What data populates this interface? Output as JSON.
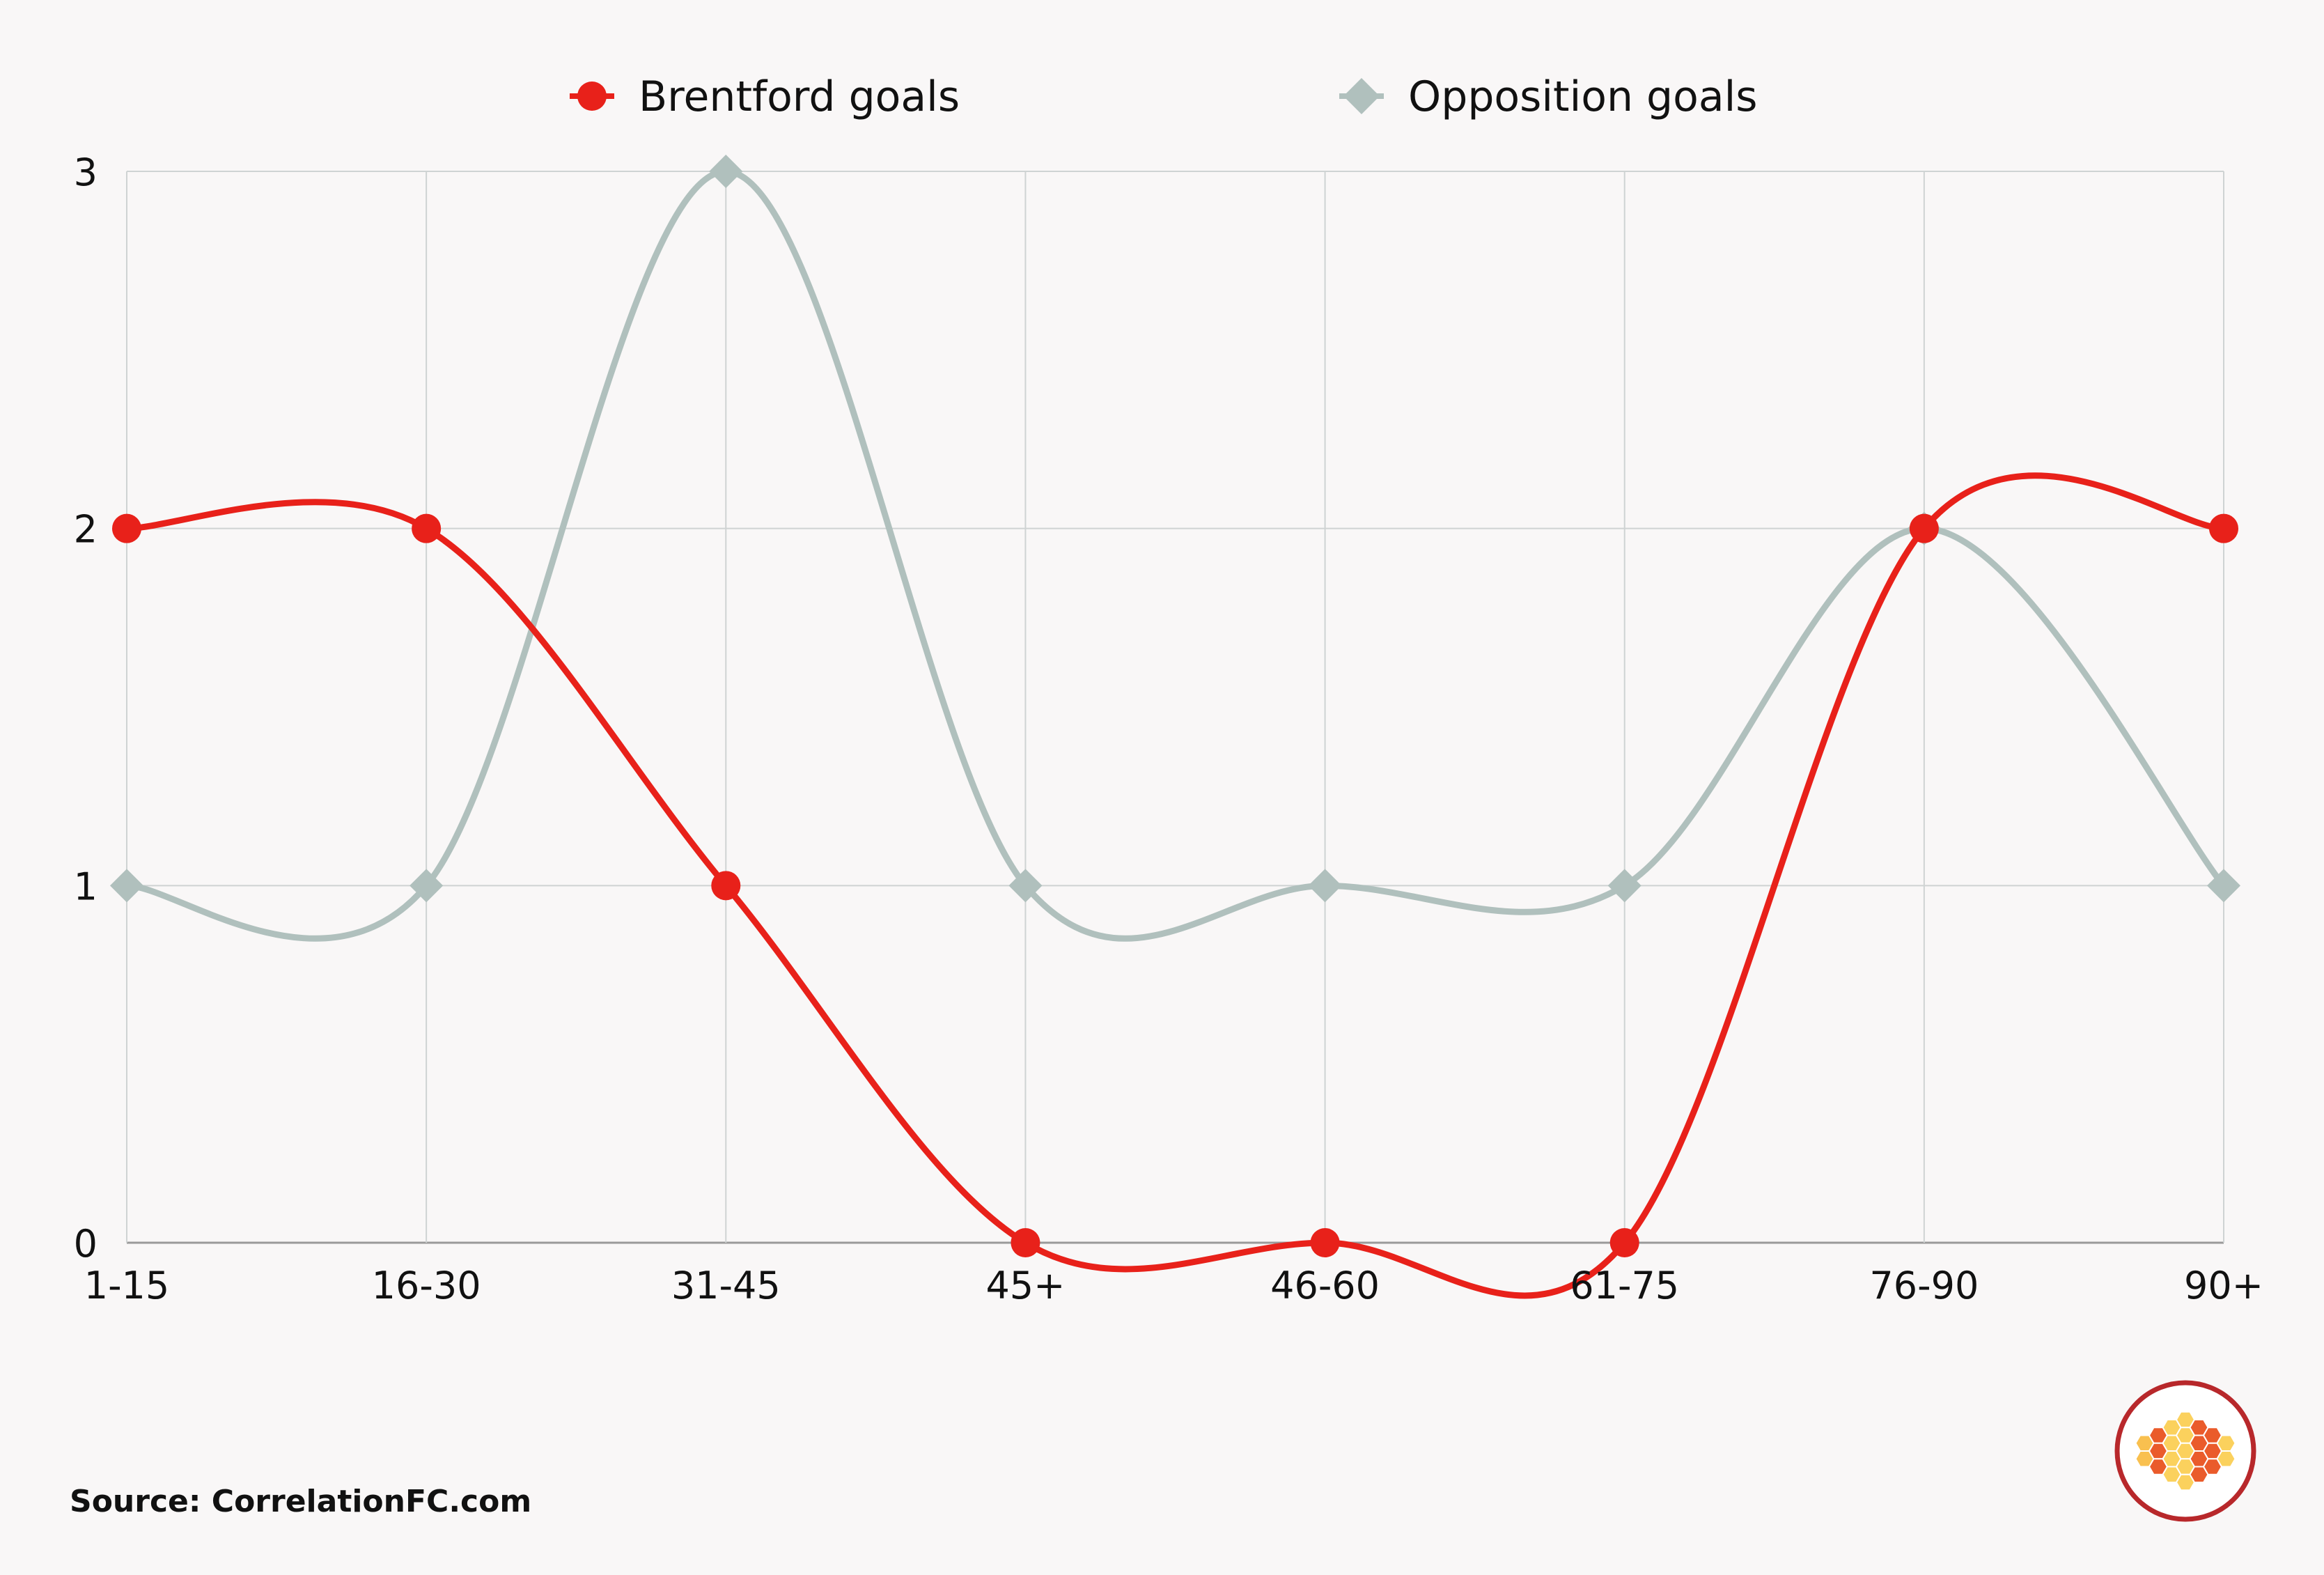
{
  "chart_data": {
    "type": "line",
    "title": "",
    "xlabel": "",
    "ylabel": "",
    "categories": [
      "1-15",
      "16-30",
      "31-45",
      "45+",
      "46-60",
      "61-75",
      "76-90",
      "90+"
    ],
    "ylim": [
      0,
      3
    ],
    "yticks": [
      0,
      1,
      2,
      3
    ],
    "grid": true,
    "smooth": true,
    "legend_position": "top",
    "series": [
      {
        "name": "Brentford goals",
        "values": [
          2,
          2,
          1,
          0,
          0,
          0,
          2,
          2
        ],
        "color": "#e8211a",
        "marker": "circle"
      },
      {
        "name": "Opposition goals",
        "values": [
          1,
          1,
          3,
          1,
          1,
          1,
          2,
          1
        ],
        "color": "#b0c0bd",
        "marker": "diamond"
      }
    ]
  },
  "source": "Source: CorrelationFC.com",
  "logo": {
    "name": "correlationfc-hexagon-logo",
    "ring_color": "#b8282b",
    "hex_colors": [
      "#f9c04f",
      "#f39a22",
      "#ea5b2b",
      "#fbd15d"
    ]
  }
}
